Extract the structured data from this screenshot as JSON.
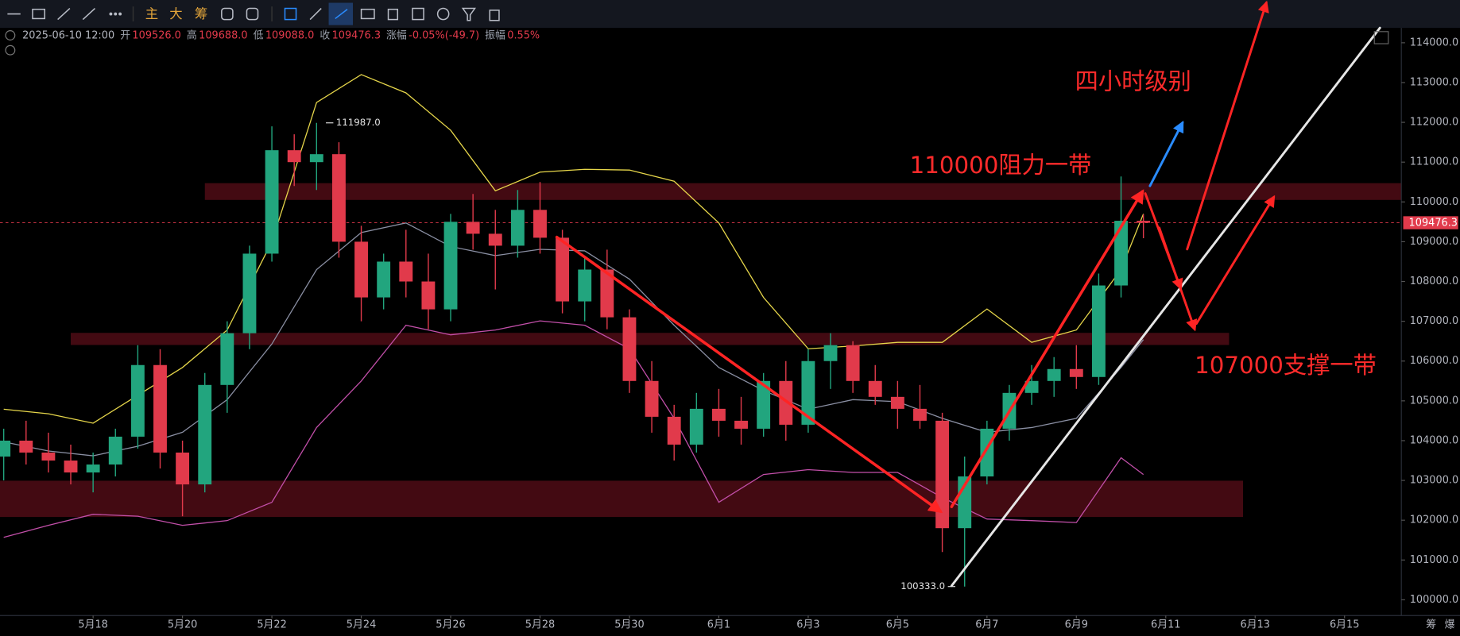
{
  "toolbar": {
    "labels": [
      "主",
      "大",
      "筹"
    ]
  },
  "header": {
    "datetime": "2025-06-10 12:00",
    "fields": [
      {
        "label": "开",
        "value": "109526.0"
      },
      {
        "label": "高",
        "value": "109688.0"
      },
      {
        "label": "低",
        "value": "109088.0"
      },
      {
        "label": "收",
        "value": "109476.3"
      },
      {
        "label": "涨幅",
        "value": "-0.05%(-49.7)"
      },
      {
        "label": "振幅",
        "value": "0.55%"
      }
    ]
  },
  "footer": [
    "筹",
    "爆"
  ],
  "chart_data": {
    "type": "candlestick",
    "up_color": "#22a57e",
    "down_color": "#e13a4b",
    "x": [
      -2,
      -1.5,
      -1,
      -0.5,
      0,
      0.5,
      1,
      1.5,
      2,
      2.5,
      3,
      3.5,
      4,
      4.5,
      5,
      5.5,
      6,
      6.5,
      7,
      7.5,
      8,
      8.5,
      9,
      9.5,
      10,
      10.5,
      11,
      11.5,
      12,
      12.5,
      13,
      13.5,
      14,
      14.5,
      15,
      15.5,
      16,
      16.5,
      17,
      17.5,
      18,
      18.5,
      19,
      19.5,
      20,
      20.5,
      21,
      21.5,
      22,
      22.5,
      23,
      23.5
    ],
    "open": [
      103600,
      104000,
      103700,
      103500,
      103200,
      103400,
      104100,
      105900,
      103700,
      102900,
      105400,
      106700,
      108700,
      111300,
      111000,
      111200,
      109000,
      107600,
      108500,
      108000,
      107300,
      109500,
      109200,
      108900,
      109800,
      109100,
      107500,
      108300,
      107100,
      105500,
      104600,
      103900,
      104800,
      104500,
      104300,
      105500,
      104400,
      106000,
      106400,
      105500,
      105100,
      104800,
      104500,
      101800,
      103100,
      104300,
      105200,
      105500,
      105800,
      105600,
      107900,
      109526
    ],
    "high": [
      104300,
      104500,
      104200,
      103900,
      103700,
      104300,
      106400,
      106300,
      104000,
      105700,
      107000,
      108900,
      111900,
      111700,
      111987,
      111500,
      109400,
      108700,
      109300,
      108700,
      109700,
      110200,
      109800,
      110300,
      110500,
      109300,
      108600,
      108800,
      107300,
      106000,
      104900,
      105200,
      105300,
      105100,
      105700,
      106000,
      106300,
      106700,
      106500,
      105900,
      105500,
      105400,
      104700,
      103600,
      104500,
      105400,
      105900,
      106100,
      106400,
      108200,
      110640,
      109688
    ],
    "low": [
      103000,
      103400,
      103200,
      102900,
      102700,
      103100,
      103800,
      103300,
      102100,
      102700,
      104700,
      106300,
      108500,
      110400,
      110300,
      108600,
      107000,
      107300,
      107600,
      106800,
      107000,
      108800,
      107800,
      108600,
      108700,
      107200,
      107000,
      106800,
      105200,
      104200,
      103500,
      103700,
      104100,
      103900,
      104100,
      104000,
      104200,
      105300,
      105200,
      104900,
      104300,
      104300,
      101200,
      100333,
      102900,
      104000,
      104900,
      105100,
      105300,
      105400,
      107600,
      109088
    ],
    "close": [
      104000,
      103700,
      103500,
      103200,
      103400,
      104100,
      105900,
      103700,
      102900,
      105400,
      106700,
      108700,
      111300,
      111000,
      111200,
      109000,
      107600,
      108500,
      108000,
      107300,
      109500,
      109200,
      108900,
      109800,
      109100,
      107500,
      108300,
      107100,
      105500,
      104600,
      103900,
      104800,
      104500,
      104300,
      105500,
      104400,
      106000,
      106400,
      105500,
      105100,
      104800,
      104500,
      101800,
      103100,
      104300,
      105200,
      105500,
      105800,
      105600,
      107900,
      109526,
      109476.3
    ],
    "bands": {
      "x": [
        -2,
        -1,
        0,
        1,
        2,
        3,
        4,
        5,
        6,
        7,
        8,
        9,
        10,
        11,
        12,
        13,
        14,
        15,
        16,
        17,
        18,
        19,
        20,
        21,
        22,
        23,
        23.5
      ],
      "upper": [
        104790,
        104675,
        104440,
        105140,
        105840,
        106780,
        109000,
        112500,
        113200,
        112740,
        111800,
        110280,
        110750,
        110820,
        110800,
        110520,
        109470,
        107600,
        106310,
        106380,
        106470,
        106470,
        107310,
        106470,
        106780,
        108300,
        109700
      ],
      "middle": [
        103970,
        103740,
        103620,
        103860,
        104210,
        105030,
        106430,
        108300,
        109230,
        109470,
        108880,
        108650,
        108810,
        108770,
        108060,
        106900,
        105840,
        105260,
        104790,
        105030,
        104980,
        104560,
        104210,
        104330,
        104560,
        105840,
        106540
      ],
      "lower": [
        101570,
        101870,
        102150,
        102100,
        101870,
        101990,
        102450,
        104330,
        105500,
        106900,
        106660,
        106780,
        107010,
        106900,
        106310,
        104560,
        102450,
        103150,
        103270,
        103200,
        103200,
        102570,
        102030,
        101990,
        101940,
        103570,
        103150
      ],
      "upper_color": "#e6d64a",
      "middle_color": "#8a8fa3",
      "lower_color": "#c24fa9"
    },
    "high_label": {
      "value": 111987,
      "label": "111987.0"
    },
    "low_label": {
      "value": 100333,
      "label": "100333.0"
    },
    "last_price": {
      "value": 109476.3,
      "label": "109476.3"
    },
    "annotations": [
      "四小时级别",
      "110000阻力一带",
      "107000支撑一带"
    ],
    "ylim": [
      99604,
      114374
    ],
    "yticks": [
      {
        "value": 100000,
        "label": "100000.0"
      },
      {
        "value": 101000,
        "label": "101000.0"
      },
      {
        "value": 102000,
        "label": "102000.0"
      },
      {
        "value": 103000,
        "label": "103000.0"
      },
      {
        "value": 104000,
        "label": "104000.0"
      },
      {
        "value": 105000,
        "label": "105000.0"
      },
      {
        "value": 106000,
        "label": "106000.0"
      },
      {
        "value": 107000,
        "label": "107000.0"
      },
      {
        "value": 108000,
        "label": "108000.0"
      },
      {
        "value": 109000,
        "label": "109000.0"
      },
      {
        "value": 110000,
        "label": "110000.0"
      },
      {
        "value": 111000,
        "label": "111000.0"
      },
      {
        "value": 112000,
        "label": "112000.0"
      },
      {
        "value": 113000,
        "label": "113000.0"
      },
      {
        "value": 114000,
        "label": "114000.0"
      }
    ],
    "xlim": [
      -2.083,
      29.271
    ],
    "xticks": [
      {
        "value": 0,
        "label": "5月18"
      },
      {
        "value": 2,
        "label": "5月20"
      },
      {
        "value": 4,
        "label": "5月22"
      },
      {
        "value": 6,
        "label": "5月24"
      },
      {
        "value": 8,
        "label": "5月26"
      },
      {
        "value": 10,
        "label": "5月28"
      },
      {
        "value": 12,
        "label": "5月30"
      },
      {
        "value": 14,
        "label": "6月1"
      },
      {
        "value": 16,
        "label": "6月3"
      },
      {
        "value": 18,
        "label": "6月5"
      },
      {
        "value": 20,
        "label": "6月7"
      },
      {
        "value": 22,
        "label": "6月9"
      },
      {
        "value": 24,
        "label": "6月11"
      },
      {
        "value": 26,
        "label": "6月13"
      },
      {
        "value": 28,
        "label": "6月15"
      }
    ]
  }
}
